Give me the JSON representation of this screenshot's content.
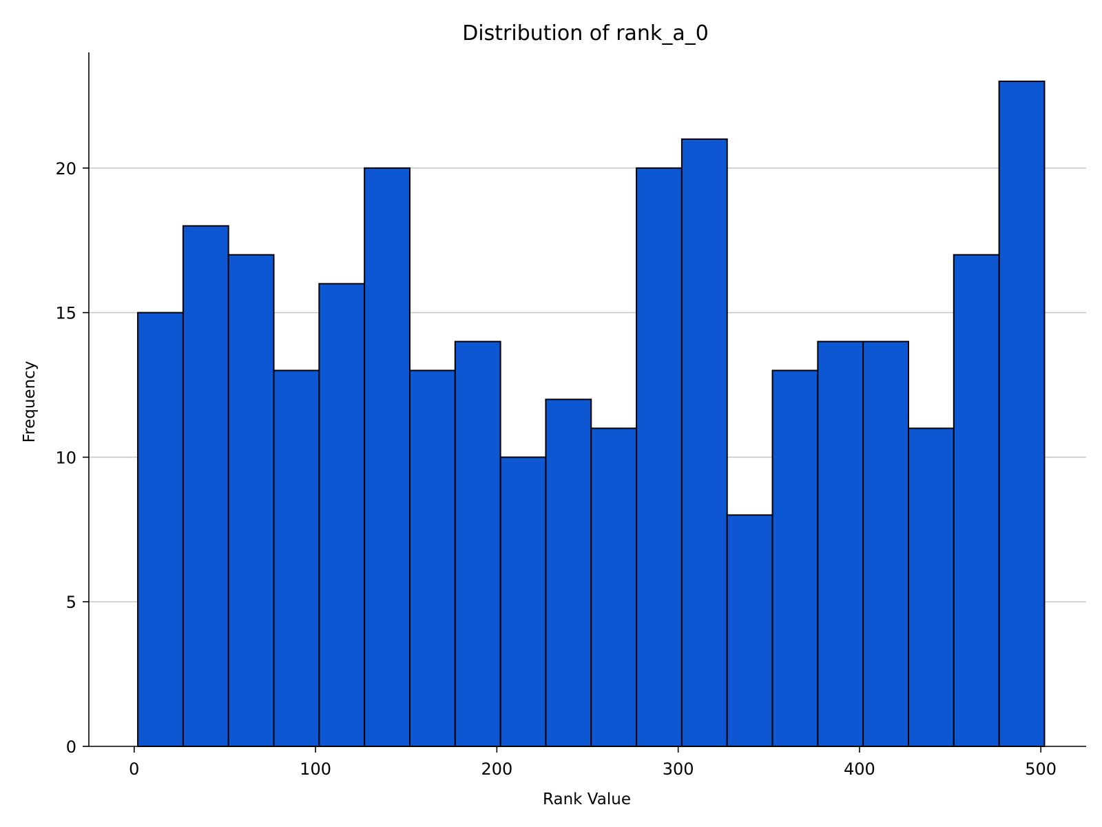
{
  "chart_data": {
    "type": "bar",
    "subtype": "histogram",
    "title": "Distribution of rank_a_0",
    "xlabel": "Rank Value",
    "ylabel": "Frequency",
    "bar_color": "#0d58d2",
    "edge_color": "#000000",
    "grid": {
      "y": true,
      "x": false
    },
    "xlim": [
      -25,
      525
    ],
    "ylim": [
      0,
      24
    ],
    "xticks": [
      0,
      100,
      200,
      300,
      400,
      500
    ],
    "yticks": [
      0,
      5,
      10,
      15,
      20
    ],
    "bin_width": 25,
    "bin_edges": [
      2,
      27,
      52,
      77,
      102,
      127,
      152,
      177,
      202,
      227,
      252,
      277,
      302,
      327,
      352,
      377,
      402,
      427,
      452,
      477,
      502
    ],
    "values": [
      15,
      18,
      17,
      13,
      16,
      20,
      13,
      14,
      10,
      12,
      11,
      20,
      21,
      8,
      13,
      14,
      14,
      11,
      17,
      23
    ]
  }
}
